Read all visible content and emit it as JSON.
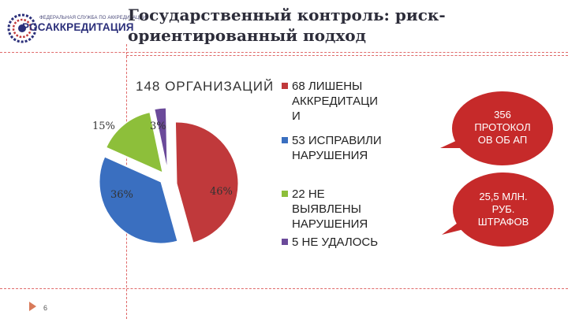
{
  "header": {
    "logo_top_text": "ФЕДЕРАЛЬНАЯ СЛУЖБА ПО АККРЕДИТАЦИИ",
    "logo_text": "РОСАККРЕДИТАЦИЯ",
    "title_line1": "Государственный контроль: риск-",
    "title_line2": "ориентированный подход"
  },
  "chart_data": {
    "type": "pie",
    "title": "148 ОРГАНИЗАЦИЙ",
    "slices": [
      {
        "label": "68 ЛИШЕНЫ АККРЕДИТАЦИИ",
        "value": 46,
        "pct_label": "46%",
        "color": "#c0393b"
      },
      {
        "label": "53 ИСПРАВИЛИ НАРУШЕНИЯ",
        "value": 36,
        "pct_label": "36%",
        "color": "#3a6fc0"
      },
      {
        "label": "22 НЕ ВЫЯВЛЕНЫ НАРУШЕНИЯ",
        "value": 15,
        "pct_label": "15%",
        "color": "#8dbf3a"
      },
      {
        "label": "5 НЕ УДАЛОСЬ",
        "value": 3,
        "pct_label": "3%",
        "color": "#6b4a9a"
      }
    ]
  },
  "legend": {
    "items": [
      {
        "lines": [
          "68 ЛИШЕНЫ",
          "АККРЕДИТАЦИ",
          "И"
        ],
        "color": "#c0393b"
      },
      {
        "lines": [
          "53 ИСПРАВИЛИ",
          "НАРУШЕНИЯ"
        ],
        "color": "#3a6fc0"
      },
      {
        "lines": [
          "22 НЕ",
          "ВЫЯВЛЕНЫ",
          "НАРУШЕНИЯ"
        ],
        "color": "#8dbf3a"
      },
      {
        "lines": [
          "5 НЕ УДАЛОСЬ"
        ],
        "color": "#6b4a9a"
      }
    ]
  },
  "callouts": [
    {
      "lines": [
        "356",
        "ПРОТОКОЛ",
        "ОВ ОБ АП"
      ]
    },
    {
      "lines": [
        "25,5 МЛН.",
        "РУБ.",
        "ШТРАФОВ"
      ]
    }
  ],
  "footer": {
    "page_number": "6"
  },
  "colors": {
    "bubble": "#c62a2a",
    "divider": "#e06a6a"
  }
}
